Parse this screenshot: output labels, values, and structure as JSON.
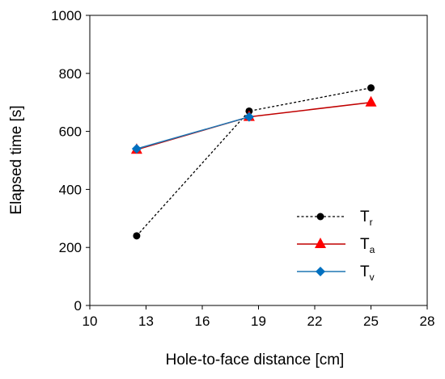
{
  "chart_data": {
    "type": "line",
    "xlabel": "Hole-to-face distance [cm]",
    "ylabel": "Elapsed time [s]",
    "xlim": [
      10,
      28
    ],
    "ylim": [
      0,
      1000
    ],
    "x_ticks": [
      "10",
      "13",
      "16",
      "19",
      "22",
      "25",
      "28"
    ],
    "y_ticks": [
      "0",
      "200",
      "400",
      "600",
      "800",
      "1000"
    ],
    "grid": false,
    "legend_position": "bottom-right",
    "series": [
      {
        "name_main": "T",
        "name_sub": "r",
        "color": "#000000",
        "line_style": "dashed",
        "marker": "circle",
        "x": [
          12.5,
          18.5,
          25
        ],
        "y": [
          240,
          670,
          750
        ]
      },
      {
        "name_main": "T",
        "name_sub": "a",
        "color": "#c00000",
        "marker_color": "#ff0000",
        "line_style": "solid",
        "marker": "triangle",
        "x": [
          12.5,
          18.5,
          25
        ],
        "y": [
          537,
          650,
          700
        ]
      },
      {
        "name_main": "T",
        "name_sub": "v",
        "color": "#1f77b4",
        "marker_color": "#0070c0",
        "line_style": "solid",
        "marker": "diamond",
        "x": [
          12.5,
          18.5,
          25
        ],
        "y": [
          540,
          650,
          null
        ]
      }
    ]
  }
}
